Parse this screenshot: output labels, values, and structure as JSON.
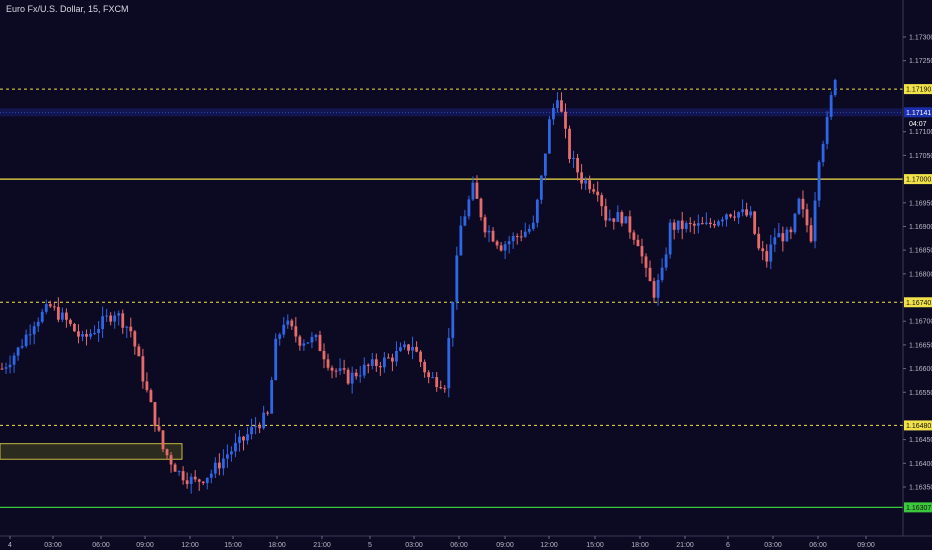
{
  "title": "Euro Fx/U.S. Dollar, 15, FXCM",
  "colors": {
    "background": "#0c0a22",
    "bull": "#2f66e6",
    "bear": "#e66b6b",
    "level_line": "#f2e24a",
    "support_line": "#3cc83c",
    "price_highlight": "#1f2aa3",
    "zone_fill": "#6a6a1a",
    "axis_text": "#b8b8c4"
  },
  "price_axis": {
    "ticks": [
      "1.17300",
      "1.17250",
      "1.17100",
      "1.17050",
      "1.16950",
      "1.16900",
      "1.16850",
      "1.16800",
      "1.16700",
      "1.16650",
      "1.16600",
      "1.16550",
      "1.16450",
      "1.16400",
      "1.16350"
    ],
    "current_price_label": "1.17141",
    "countdown_label": "04:07"
  },
  "time_axis": {
    "ticks": [
      "4",
      "03:00",
      "06:00",
      "09:00",
      "12:00",
      "15:00",
      "18:00",
      "21:00",
      "5",
      "03:00",
      "06:00",
      "09:00",
      "12:00",
      "15:00",
      "18:00",
      "21:00",
      "6",
      "03:00",
      "06:00",
      "09:00"
    ]
  },
  "chart_data": {
    "type": "candlestick",
    "title": "Euro Fx/U.S. Dollar, 15, FXCM",
    "ylim": [
      1.1629,
      1.1735
    ],
    "horizontal_levels": [
      {
        "price": 1.1719,
        "label": "1.17190",
        "style": "dashed",
        "color": "#f2e24a"
      },
      {
        "price": 1.17,
        "label": "1.17000",
        "style": "solid",
        "color": "#f2e24a"
      },
      {
        "price": 1.1674,
        "label": "1.16740",
        "style": "dashed",
        "color": "#f2e24a"
      },
      {
        "price": 1.1648,
        "label": "1.16480",
        "style": "dashed",
        "color": "#f2e24a"
      },
      {
        "price": 1.16307,
        "label": "1.16307",
        "style": "solid",
        "color": "#3cc83c"
      }
    ],
    "zone": {
      "from": 1.16415,
      "to": 1.16435
    },
    "current_price": 1.17141,
    "waypoints": [
      [
        0,
        1.166
      ],
      [
        4,
        1.1664
      ],
      [
        8,
        1.167
      ],
      [
        12,
        1.1673
      ],
      [
        16,
        1.167
      ],
      [
        20,
        1.1666
      ],
      [
        24,
        1.1669
      ],
      [
        28,
        1.1672
      ],
      [
        32,
        1.1668
      ],
      [
        36,
        1.1655
      ],
      [
        40,
        1.1643
      ],
      [
        44,
        1.1638
      ],
      [
        48,
        1.1636
      ],
      [
        52,
        1.1638
      ],
      [
        56,
        1.1642
      ],
      [
        60,
        1.1645
      ],
      [
        63,
        1.1648
      ],
      [
        66,
        1.165
      ],
      [
        68,
        1.1665
      ],
      [
        70,
        1.167
      ],
      [
        74,
        1.1666
      ],
      [
        78,
        1.1666
      ],
      [
        82,
        1.166
      ],
      [
        86,
        1.1658
      ],
      [
        90,
        1.166
      ],
      [
        96,
        1.1662
      ],
      [
        102,
        1.1665
      ],
      [
        106,
        1.1658
      ],
      [
        110,
        1.1657
      ],
      [
        112,
        1.1675
      ],
      [
        114,
        1.169
      ],
      [
        117,
        1.1698
      ],
      [
        120,
        1.169
      ],
      [
        124,
        1.1686
      ],
      [
        128,
        1.1688
      ],
      [
        132,
        1.169
      ],
      [
        134,
        1.17
      ],
      [
        136,
        1.1712
      ],
      [
        138,
        1.1718
      ],
      [
        141,
        1.1705
      ],
      [
        144,
        1.17
      ],
      [
        148,
        1.1698
      ],
      [
        150,
        1.1692
      ],
      [
        154,
        1.1692
      ],
      [
        158,
        1.1687
      ],
      [
        160,
        1.168
      ],
      [
        162,
        1.1676
      ],
      [
        164,
        1.168
      ],
      [
        166,
        1.169
      ],
      [
        170,
        1.169
      ],
      [
        175,
        1.169
      ],
      [
        180,
        1.1693
      ],
      [
        183,
        1.1693
      ],
      [
        186,
        1.1692
      ],
      [
        188,
        1.1685
      ],
      [
        190,
        1.1683
      ],
      [
        192,
        1.1688
      ],
      [
        196,
        1.1688
      ],
      [
        198,
        1.1695
      ],
      [
        201,
        1.1688
      ],
      [
        203,
        1.1705
      ],
      [
        205,
        1.1712
      ],
      [
        207,
        1.1722
      ]
    ]
  }
}
